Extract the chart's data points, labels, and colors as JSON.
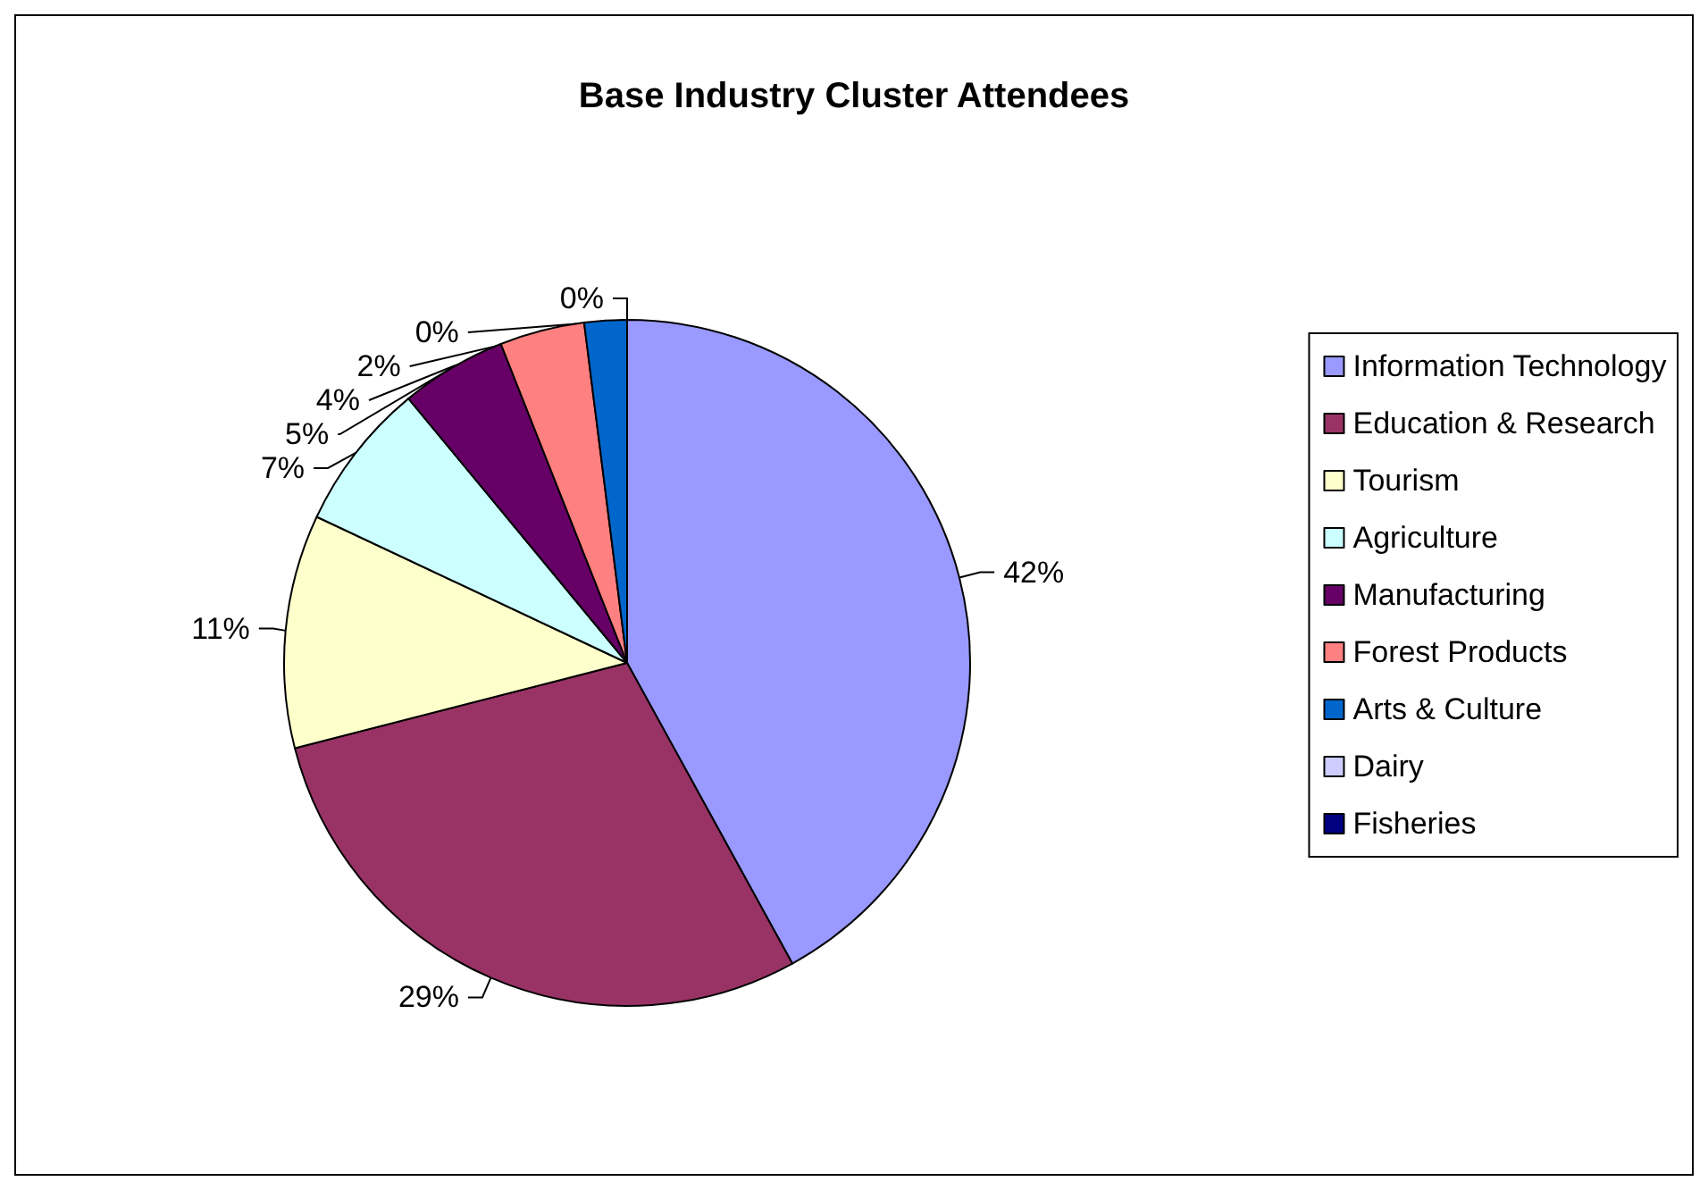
{
  "chart_data": {
    "type": "pie",
    "title": "Base Industry Cluster Attendees",
    "categories": [
      "Information Technology",
      "Education & Research",
      "Tourism",
      "Agriculture",
      "Manufacturing",
      "Forest Products",
      "Arts & Culture",
      "Dairy",
      "Fisheries"
    ],
    "values": [
      42,
      29,
      11,
      7,
      5,
      4,
      2,
      0,
      0
    ],
    "value_labels": [
      "42%",
      "29%",
      "11%",
      "7%",
      "5%",
      "4%",
      "2%",
      "0%",
      "0%"
    ],
    "colors": [
      "#9999ff",
      "#993366",
      "#ffffcc",
      "#ccffff",
      "#660066",
      "#ff8080",
      "#0066cc",
      "#ccccff",
      "#000080"
    ],
    "legend": "right"
  }
}
